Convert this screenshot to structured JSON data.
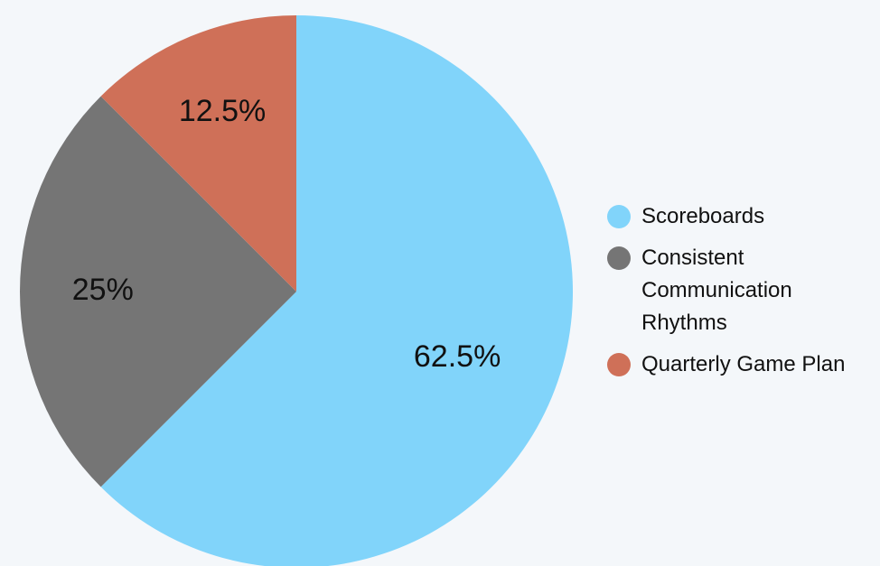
{
  "chart_data": {
    "type": "pie",
    "categories": [
      "Scoreboards",
      "Consistent Communication Rhythms",
      "Quarterly Game Plan"
    ],
    "values": [
      62.5,
      25,
      12.5
    ],
    "value_labels": [
      "62.5%",
      "25%",
      "12.5%"
    ],
    "colors": [
      "#81d4fa",
      "#757575",
      "#cf7058"
    ],
    "legend": "right"
  }
}
